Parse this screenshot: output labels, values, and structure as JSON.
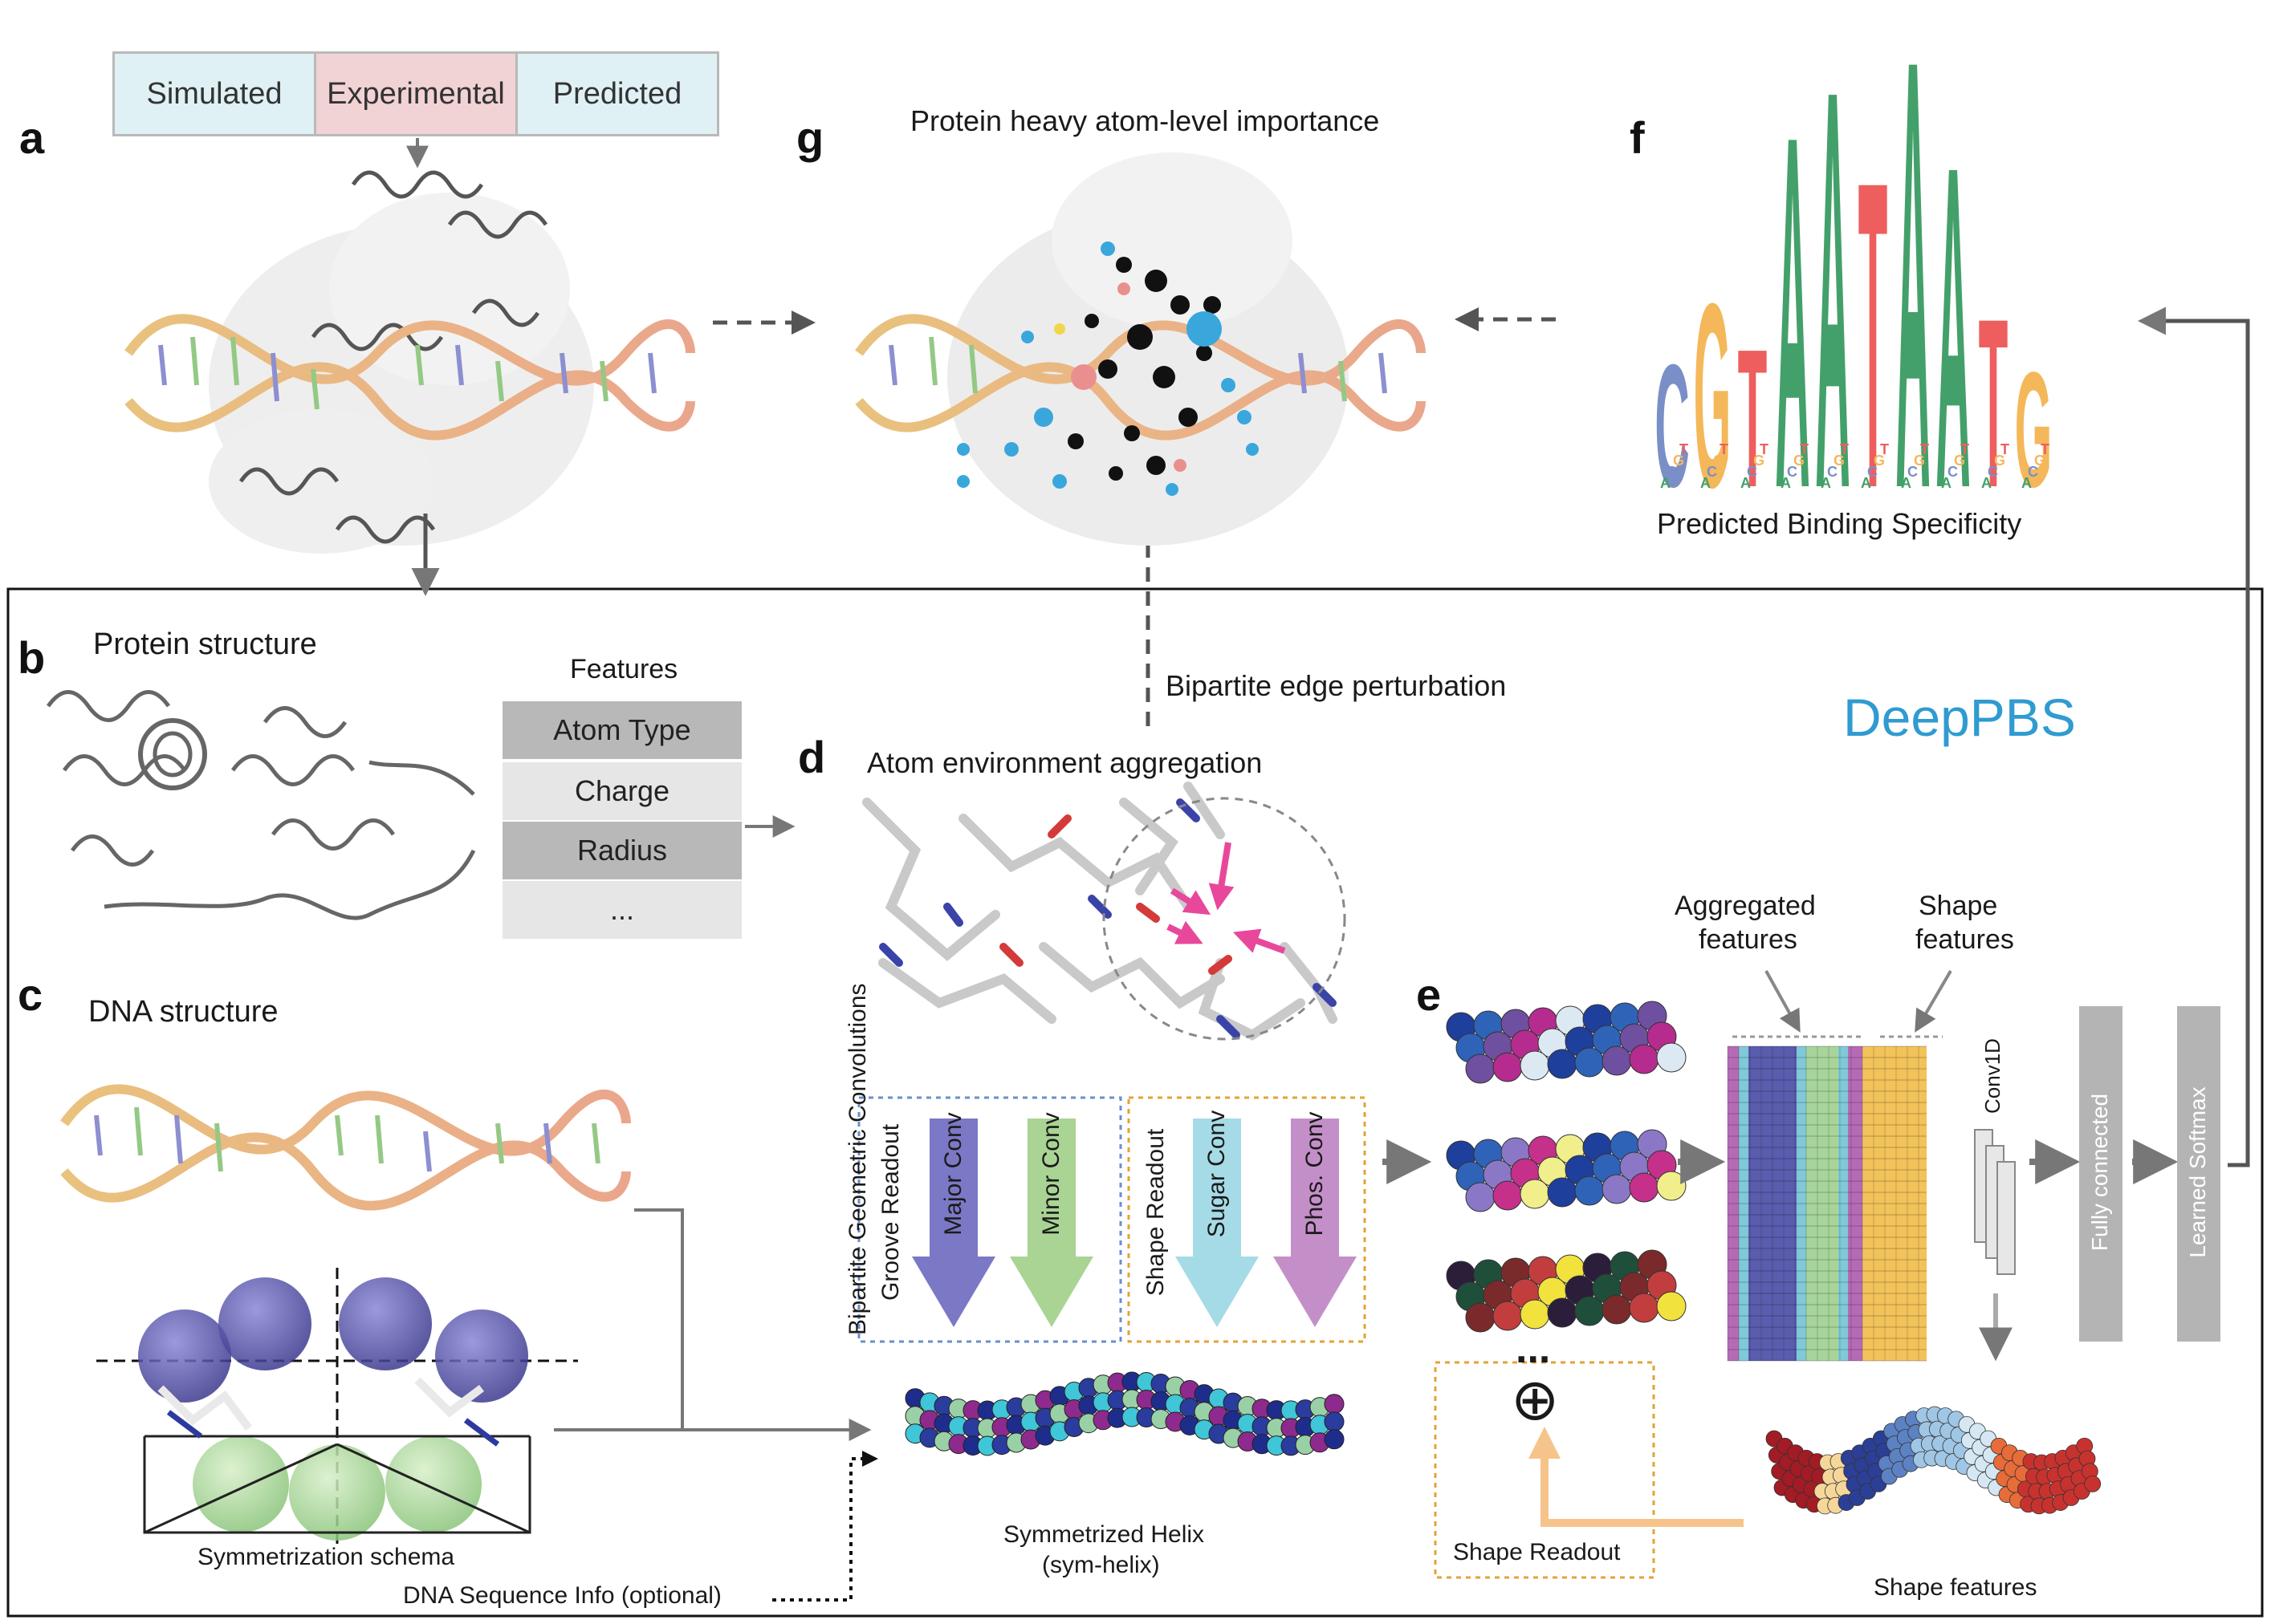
{
  "panels": {
    "a": "a",
    "b": "b",
    "c": "c",
    "d": "d",
    "e": "e",
    "f": "f",
    "g": "g"
  },
  "source_tabs": [
    "Simulated",
    "Experimental",
    "Predicted"
  ],
  "source_tab_colors": [
    "#dff1f5",
    "#f1d3d5",
    "#dff1f5"
  ],
  "g_title": "Protein heavy atom-level importance",
  "f_caption": "Predicted Binding Specificity",
  "b_title": "Protein structure",
  "c_title": "DNA structure",
  "features": {
    "title": "Features",
    "rows": [
      "Atom Type",
      "Charge",
      "Radius",
      "..."
    ]
  },
  "bipartite_perturbation": "Bipartite edge perturbation",
  "brand": "DeepPBS",
  "brand_color": "#2f9bd1",
  "d_title": "Atom environment aggregation",
  "bgc_label": "Bipartite Geometric Convolutions",
  "groove_readout": "Groove Readout",
  "shape_readout_vertical": "Shape Readout",
  "convs": [
    "Major Conv",
    "Minor Conv",
    "Sugar Conv",
    "Phos. Conv"
  ],
  "conv_colors": [
    "#7b78c6",
    "#a9d494",
    "#a5dbe6",
    "#c48fc9"
  ],
  "sym_schema": "Symmetrization schema",
  "dna_seq_info": "DNA Sequence Info (optional)",
  "sym_helix_line1": "Symmetrized Helix",
  "sym_helix_line2": "(sym-helix)",
  "ellipsis": "...",
  "plus_symbol": "⊕",
  "shape_readout_box": "Shape Readout",
  "aggregated_features": [
    "Aggregated",
    "features"
  ],
  "shape_features_top": [
    "Shape",
    "features"
  ],
  "conv1d": "Conv1D",
  "fully_connected": "Fully connected",
  "learned_softmax": "Learned Softmax",
  "shape_features_bottom": "Shape features",
  "logo": {
    "colors": {
      "A": "#44a06a",
      "C": "#7a8fc7",
      "G": "#f4b75a",
      "T": "#ee5e5e"
    },
    "letters": [
      "C",
      "G",
      "T",
      "A",
      "A",
      "T",
      "A",
      "A",
      "T",
      "G"
    ]
  }
}
